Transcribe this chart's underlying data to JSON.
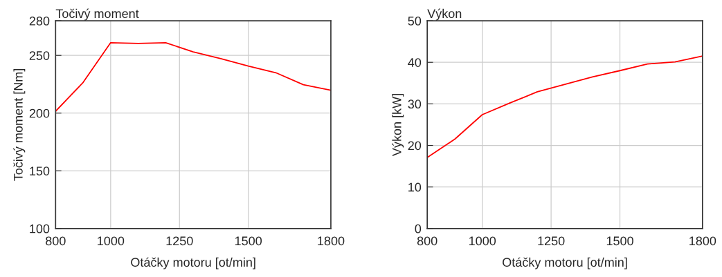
{
  "chart_data": [
    {
      "type": "line",
      "title": "Točivý moment",
      "xlabel": "Otáčky motoru [ot/min]",
      "ylabel": "Točivý moment [Nm]",
      "x": [
        800,
        900,
        1000,
        1100,
        1200,
        1300,
        1400,
        1500,
        1600,
        1700,
        1800
      ],
      "series": [
        {
          "color": "#ff0000",
          "values": [
            201.6,
            226.6,
            261,
            260.4,
            261,
            253,
            247.2,
            240.8,
            235,
            224.6,
            219.8
          ]
        }
      ],
      "xlim": [
        800,
        1800
      ],
      "xticks": [
        800,
        1000,
        1250,
        1500,
        1800
      ],
      "ylim": [
        100,
        280
      ],
      "yticks": [
        100,
        150,
        200,
        250,
        280
      ],
      "grid": true
    },
    {
      "type": "line",
      "title": "Výkon",
      "xlabel": "Otáčky motoru [ot/min]",
      "ylabel": "Výkon [kW]",
      "x": [
        800,
        900,
        1000,
        1100,
        1200,
        1300,
        1400,
        1500,
        1600,
        1700,
        1800
      ],
      "series": [
        {
          "color": "#ff0000",
          "values": [
            17.1,
            21.5,
            27.4,
            30.2,
            32.9,
            34.7,
            36.5,
            38.0,
            39.6,
            40.1,
            41.5
          ]
        }
      ],
      "xlim": [
        800,
        1800
      ],
      "xticks": [
        800,
        1000,
        1250,
        1500,
        1800
      ],
      "ylim": [
        0,
        50
      ],
      "yticks": [
        0,
        10,
        20,
        30,
        40,
        50
      ],
      "grid": true
    }
  ]
}
